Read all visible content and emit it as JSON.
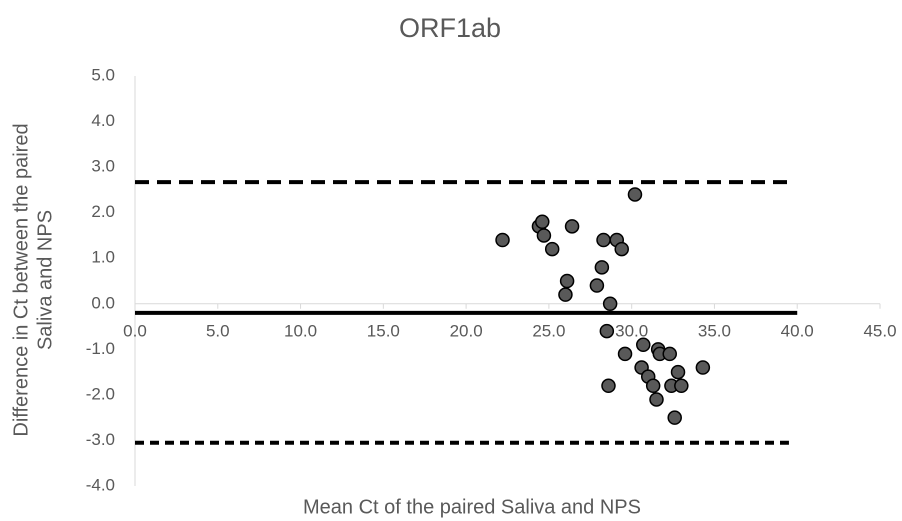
{
  "chart_data": {
    "type": "scatter",
    "title": "ORF1ab",
    "x_label": "Mean Ct of the paired Saliva and NPS",
    "y_label": [
      "Difference in Ct between the paired",
      "Saliva and NPS"
    ],
    "xlim": [
      0,
      45
    ],
    "ylim": [
      -4,
      5
    ],
    "xticks": [
      {
        "value": 0,
        "label": "0.0"
      },
      {
        "value": 5,
        "label": "5.0"
      },
      {
        "value": 10,
        "label": "10.0"
      },
      {
        "value": 15,
        "label": "15.0"
      },
      {
        "value": 20,
        "label": "20.0"
      },
      {
        "value": 25,
        "label": "25.0"
      },
      {
        "value": 30,
        "label": "30.0"
      },
      {
        "value": 35,
        "label": "35.0"
      },
      {
        "value": 40,
        "label": "40.0"
      },
      {
        "value": 45,
        "label": "45.0"
      }
    ],
    "yticks": [
      {
        "value": -4,
        "label": "-4.0"
      },
      {
        "value": -3,
        "label": "-3.0"
      },
      {
        "value": -2,
        "label": "-2.0"
      },
      {
        "value": -1,
        "label": "-1.0"
      },
      {
        "value": 0,
        "label": "0.0"
      },
      {
        "value": 1,
        "label": "1.0"
      },
      {
        "value": 2,
        "label": "2.0"
      },
      {
        "value": 3,
        "label": "3.0"
      },
      {
        "value": 4,
        "label": "4.0"
      },
      {
        "value": 5,
        "label": "5.0"
      }
    ],
    "grid": false,
    "series": [
      {
        "color": "#595959",
        "x": [
          22.2,
          24.4,
          24.6,
          24.7,
          25.2,
          26.0,
          26.1,
          26.4,
          27.9,
          28.2,
          28.3,
          28.5,
          28.6,
          28.7,
          29.1,
          29.4,
          29.6,
          30.2,
          30.6,
          30.7,
          31.0,
          31.3,
          31.5,
          31.6,
          31.7,
          32.3,
          32.4,
          32.6,
          32.8,
          33.0,
          34.3
        ],
        "values": [
          1.4,
          1.7,
          1.8,
          1.5,
          1.2,
          0.2,
          0.5,
          1.7,
          0.4,
          0.8,
          1.4,
          -0.6,
          -1.8,
          0.0,
          1.4,
          1.2,
          -1.1,
          2.4,
          -1.4,
          -0.9,
          -1.6,
          -1.8,
          -2.1,
          -1.0,
          -1.1,
          -1.1,
          -1.8,
          -2.5,
          -1.5,
          -1.8,
          -1.4
        ]
      }
    ],
    "reference_lines": [
      {
        "value": 2.67,
        "style": "dashed",
        "x": [
          0,
          39.5
        ]
      },
      {
        "value": -0.2,
        "style": "solid",
        "x": [
          0,
          40
        ]
      },
      {
        "value": -3.05,
        "style": "dotted",
        "x": [
          0,
          39.5
        ]
      }
    ]
  }
}
